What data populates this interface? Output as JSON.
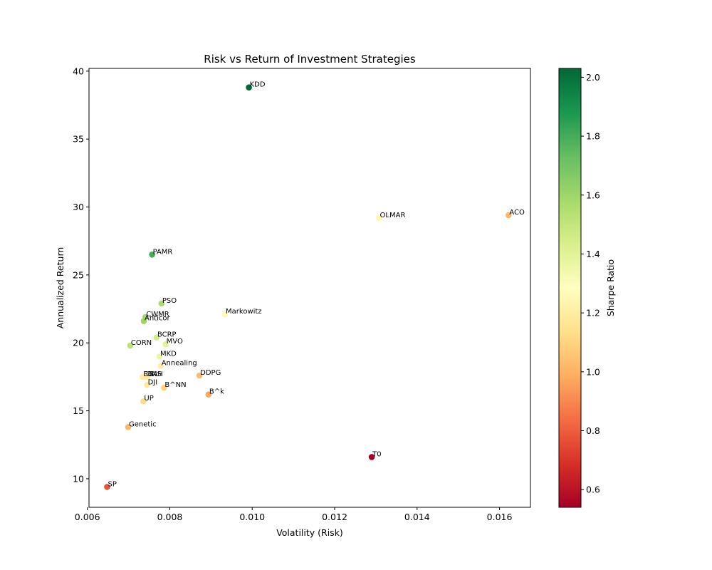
{
  "chart_data": {
    "type": "scatter",
    "title": "Risk vs Return of Investment Strategies",
    "xlabel": "Volatility (Risk)",
    "ylabel": "Annualized Return",
    "xlim": [
      0.00604,
      0.01675
    ],
    "ylim": [
      7.9,
      40.2
    ],
    "xticks": [
      0.006,
      0.008,
      0.01,
      0.012,
      0.014,
      0.016
    ],
    "xtick_labels": [
      "0.006",
      "0.008",
      "0.010",
      "0.012",
      "0.014",
      "0.016"
    ],
    "yticks": [
      10,
      15,
      20,
      25,
      30,
      35,
      40
    ],
    "ytick_labels": [
      "10",
      "15",
      "20",
      "25",
      "30",
      "35",
      "40"
    ],
    "grid": false,
    "colorbar": {
      "label": "Sharpe Ratio",
      "cmap": "RdYlGn",
      "range": [
        0.54,
        2.03
      ],
      "ticks": [
        0.6,
        0.8,
        1.0,
        1.2,
        1.4,
        1.6,
        1.8,
        2.0
      ],
      "tick_labels": [
        "0.6",
        "0.8",
        "1.0",
        "1.2",
        "1.4",
        "1.6",
        "1.8",
        "2.0"
      ]
    },
    "points": [
      {
        "label": "KDD",
        "x": 0.00992,
        "y": 38.8,
        "sharpe": 2.03
      },
      {
        "label": "OLMAR",
        "x": 0.01308,
        "y": 29.2,
        "sharpe": 1.24
      },
      {
        "label": "ACO",
        "x": 0.01622,
        "y": 29.4,
        "sharpe": 1.02
      },
      {
        "label": "PAMR",
        "x": 0.00757,
        "y": 26.5,
        "sharpe": 1.8
      },
      {
        "label": "PSO",
        "x": 0.0078,
        "y": 22.9,
        "sharpe": 1.57
      },
      {
        "label": "CWMR",
        "x": 0.00741,
        "y": 21.9,
        "sharpe": 1.58
      },
      {
        "label": "Anticor",
        "x": 0.00737,
        "y": 21.6,
        "sharpe": 1.6
      },
      {
        "label": "Markowitz",
        "x": 0.00934,
        "y": 22.1,
        "sharpe": 1.26
      },
      {
        "label": "BCRP",
        "x": 0.00768,
        "y": 20.4,
        "sharpe": 1.45
      },
      {
        "label": "MVO",
        "x": 0.0079,
        "y": 19.9,
        "sharpe": 1.4
      },
      {
        "label": "CORN",
        "x": 0.00704,
        "y": 19.8,
        "sharpe": 1.52
      },
      {
        "label": "MKD",
        "x": 0.00775,
        "y": 19.0,
        "sharpe": 1.36
      },
      {
        "label": "Annealing",
        "x": 0.00778,
        "y": 18.3,
        "sharpe": 1.22
      },
      {
        "label": "DDPG",
        "x": 0.00872,
        "y": 17.6,
        "sharpe": 1.03
      },
      {
        "label": "EG",
        "x": 0.00734,
        "y": 17.5,
        "sharpe": 1.21
      },
      {
        "label": "ONS",
        "x": 0.00741,
        "y": 17.5,
        "sharpe": 1.2
      },
      {
        "label": "BAH",
        "x": 0.00745,
        "y": 17.5,
        "sharpe": 1.19
      },
      {
        "label": "DJI",
        "x": 0.00745,
        "y": 16.9,
        "sharpe": 1.18
      },
      {
        "label": "B^NN",
        "x": 0.00786,
        "y": 16.7,
        "sharpe": 1.1
      },
      {
        "label": "B^k",
        "x": 0.00894,
        "y": 16.2,
        "sharpe": 0.97
      },
      {
        "label": "UP",
        "x": 0.00736,
        "y": 15.7,
        "sharpe": 1.13
      },
      {
        "label": "Genetic",
        "x": 0.00699,
        "y": 13.8,
        "sharpe": 1.02
      },
      {
        "label": "T0",
        "x": 0.0129,
        "y": 11.6,
        "sharpe": 0.54
      },
      {
        "label": "SP",
        "x": 0.00648,
        "y": 9.4,
        "sharpe": 0.77
      }
    ]
  }
}
